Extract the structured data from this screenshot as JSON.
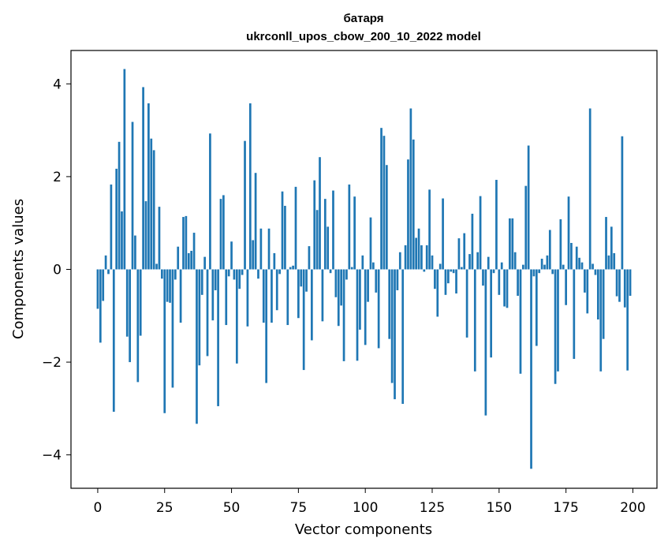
{
  "chart_data": {
    "type": "bar",
    "title_line1": "батаря",
    "title_line2": "ukrconll_upos_cbow_200_10_2022 model",
    "xlabel": "Vector components",
    "ylabel": "Components values",
    "xlim": [
      -10,
      209
    ],
    "ylim": [
      -4.72,
      4.72
    ],
    "xticks": [
      0,
      25,
      50,
      75,
      100,
      125,
      150,
      175,
      200
    ],
    "yticks": [
      -4,
      -2,
      0,
      2,
      4
    ],
    "ytick_labels": [
      "−4",
      "−2",
      "0",
      "2",
      "4"
    ],
    "bar_color": "#1f77b4",
    "grid": false,
    "legend": "none",
    "values": [
      -0.85,
      -1.58,
      -0.68,
      0.3,
      -0.1,
      1.83,
      -3.07,
      2.17,
      2.75,
      1.25,
      4.32,
      -1.45,
      -2.0,
      3.18,
      0.73,
      -2.43,
      -1.43,
      3.93,
      1.47,
      3.58,
      2.82,
      2.57,
      0.12,
      1.35,
      -0.2,
      -3.1,
      -0.7,
      -0.72,
      -2.55,
      -0.22,
      0.49,
      -1.15,
      1.13,
      1.15,
      0.35,
      0.4,
      0.79,
      -3.33,
      -2.07,
      -0.55,
      0.27,
      -1.87,
      2.93,
      -1.1,
      -0.45,
      -2.95,
      1.52,
      1.6,
      -1.2,
      -0.15,
      0.6,
      -0.22,
      -2.03,
      -0.42,
      -0.12,
      2.77,
      -1.23,
      3.58,
      0.63,
      2.08,
      -0.2,
      0.88,
      -1.15,
      -2.45,
      0.88,
      -1.15,
      0.35,
      -0.88,
      -0.1,
      1.68,
      1.37,
      -1.2,
      0.05,
      0.08,
      1.78,
      -1.05,
      -0.37,
      -2.17,
      -0.48,
      0.5,
      -1.53,
      1.92,
      1.28,
      2.42,
      -1.12,
      1.52,
      0.92,
      -0.08,
      1.7,
      -0.6,
      -1.22,
      -0.78,
      -1.98,
      -0.22,
      1.83,
      0.05,
      1.57,
      -1.97,
      -1.3,
      0.3,
      -1.63,
      -0.7,
      1.12,
      0.15,
      -0.5,
      -1.7,
      3.05,
      2.88,
      2.25,
      -1.5,
      -2.45,
      -2.8,
      -0.45,
      0.37,
      -2.9,
      0.52,
      2.37,
      3.47,
      2.8,
      0.68,
      0.88,
      0.52,
      -0.05,
      0.52,
      1.72,
      0.3,
      -0.42,
      -1.02,
      0.12,
      1.53,
      -0.55,
      -0.3,
      -0.05,
      -0.08,
      -0.52,
      0.67,
      0.05,
      0.78,
      -1.47,
      0.33,
      1.2,
      -2.2,
      0.37,
      1.58,
      -0.35,
      -3.15,
      0.27,
      -1.9,
      -0.08,
      1.93,
      -0.55,
      0.15,
      -0.8,
      -0.83,
      1.1,
      1.1,
      0.37,
      -0.57,
      -2.25,
      0.1,
      1.8,
      2.67,
      -4.3,
      -0.15,
      -1.65,
      -0.08,
      0.23,
      0.1,
      0.3,
      0.85,
      -0.1,
      -2.47,
      -2.2,
      1.08,
      0.1,
      -0.77,
      1.57,
      0.57,
      -1.93,
      0.49,
      0.25,
      0.15,
      -0.5,
      -0.95,
      3.47,
      0.12,
      -0.12,
      -1.08,
      -2.2,
      -1.5,
      1.13,
      0.3,
      0.92,
      0.35,
      -0.58,
      -0.7,
      2.87,
      -0.82,
      -2.18,
      -0.57
    ]
  }
}
